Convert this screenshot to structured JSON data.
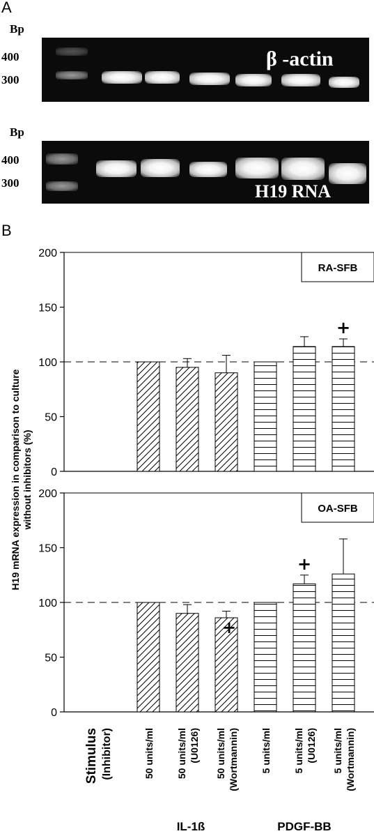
{
  "panel_a": {
    "letter": "A",
    "gel_top": {
      "bp_label": "Bp",
      "markers": [
        "400",
        "300"
      ],
      "name": "β -actin"
    },
    "gel_bottom": {
      "bp_label": "Bp",
      "markers": [
        "400",
        "300"
      ],
      "name": "H19 RNA"
    }
  },
  "panel_b": {
    "letter": "B"
  },
  "chart_data": {
    "type": "bar",
    "ylabel": "H19 mRNA expression in comparison to culture without inhibitors (%)",
    "stimulus_label": "Stimulus",
    "inhibitor_label": "(Inhibitor)",
    "categories": [
      {
        "dose": "50 units/ml",
        "inhibitor": "",
        "group": "IL-1ß",
        "pattern": "diagonal"
      },
      {
        "dose": "50 units/ml",
        "inhibitor": "(U0126)",
        "group": "IL-1ß",
        "pattern": "diagonal"
      },
      {
        "dose": "50 units/ml",
        "inhibitor": "(Wortmannin)",
        "group": "IL-1ß",
        "pattern": "diagonal"
      },
      {
        "dose": "5 units/ml",
        "inhibitor": "",
        "group": "PDGF-BB",
        "pattern": "horizontal"
      },
      {
        "dose": "5 units/ml",
        "inhibitor": "(U0126)",
        "group": "PDGF-BB",
        "pattern": "horizontal"
      },
      {
        "dose": "5 units/ml",
        "inhibitor": "(Wortmannin)",
        "group": "PDGF-BB",
        "pattern": "horizontal"
      }
    ],
    "groups": [
      "IL-1ß",
      "PDGF-BB"
    ],
    "reference_line": 100,
    "ylim": [
      0,
      200
    ],
    "yticks": [
      0,
      50,
      100,
      150,
      200
    ],
    "subplots": [
      {
        "name": "RA-SFB",
        "values": [
          100,
          95,
          90,
          100,
          114,
          114
        ],
        "errors": [
          0,
          8,
          16,
          0,
          9,
          7
        ],
        "markers": [
          "",
          "",
          "",
          "",
          "",
          "+"
        ]
      },
      {
        "name": "OA-SFB",
        "values": [
          100,
          90,
          86,
          100,
          117,
          126
        ],
        "errors": [
          0,
          8,
          6,
          0,
          8,
          32
        ],
        "markers": [
          "",
          "",
          "+",
          "",
          "+",
          ""
        ]
      }
    ]
  }
}
